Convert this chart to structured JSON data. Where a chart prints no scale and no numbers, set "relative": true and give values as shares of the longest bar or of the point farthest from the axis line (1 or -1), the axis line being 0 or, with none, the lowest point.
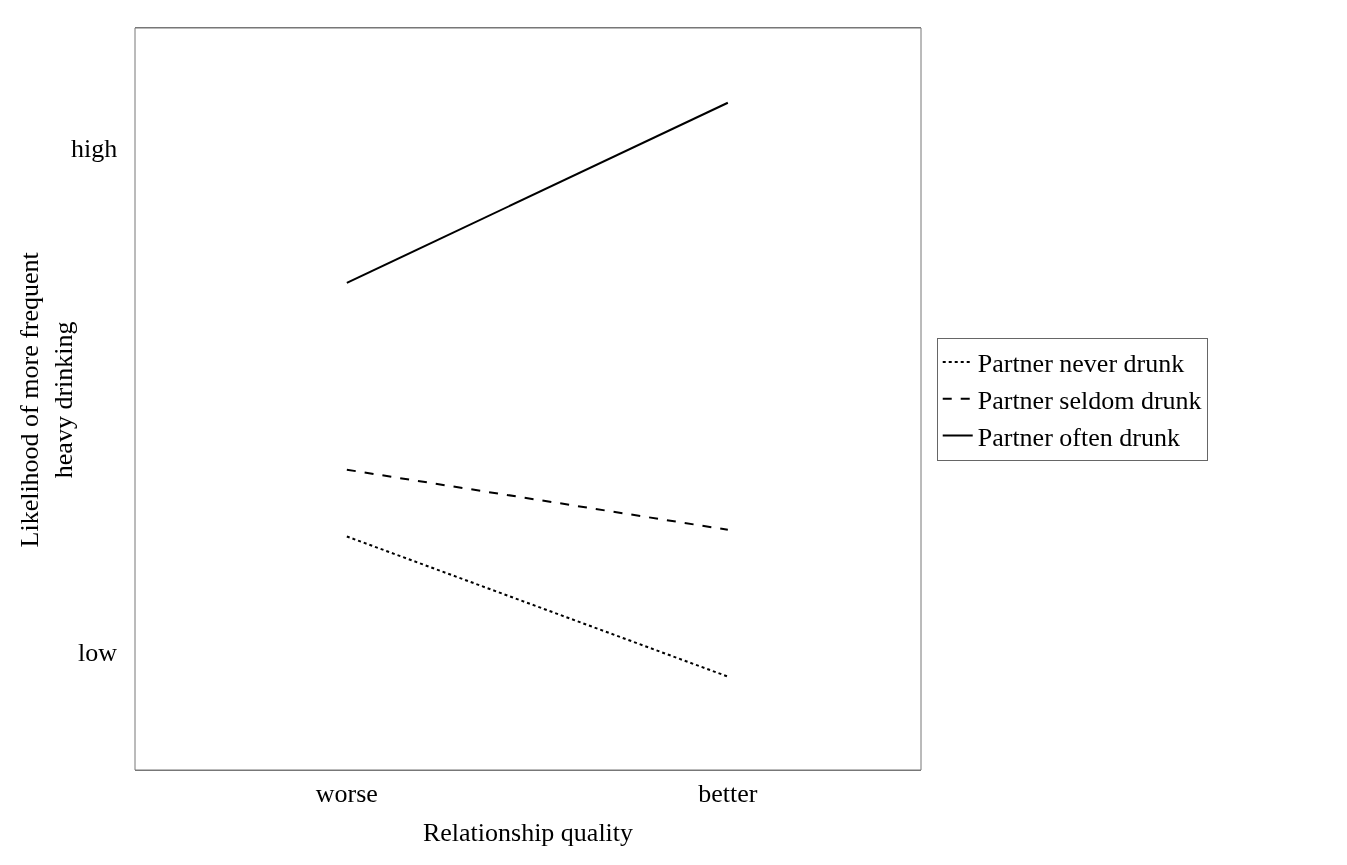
{
  "chart_data": {
    "type": "line",
    "xlabel": "Relationship quality",
    "ylabel": "Likelihood of more frequent\nheavy drinking",
    "categories": [
      "worse",
      "better"
    ],
    "series": [
      {
        "name": "Partner never drunk",
        "color": "#000000",
        "line_style": "dotted",
        "values": [
          0.35,
          0.14
        ]
      },
      {
        "name": "Partner seldom drunk",
        "color": "#000000",
        "line_style": "dashed",
        "values": [
          0.45,
          0.36
        ]
      },
      {
        "name": "Partner often drunk",
        "color": "#000000",
        "line_style": "solid",
        "values": [
          0.73,
          1
        ]
      }
    ],
    "relative": true,
    "annotations": [
      "high",
      "low"
    ],
    "legend": "right",
    "marker": "none"
  }
}
